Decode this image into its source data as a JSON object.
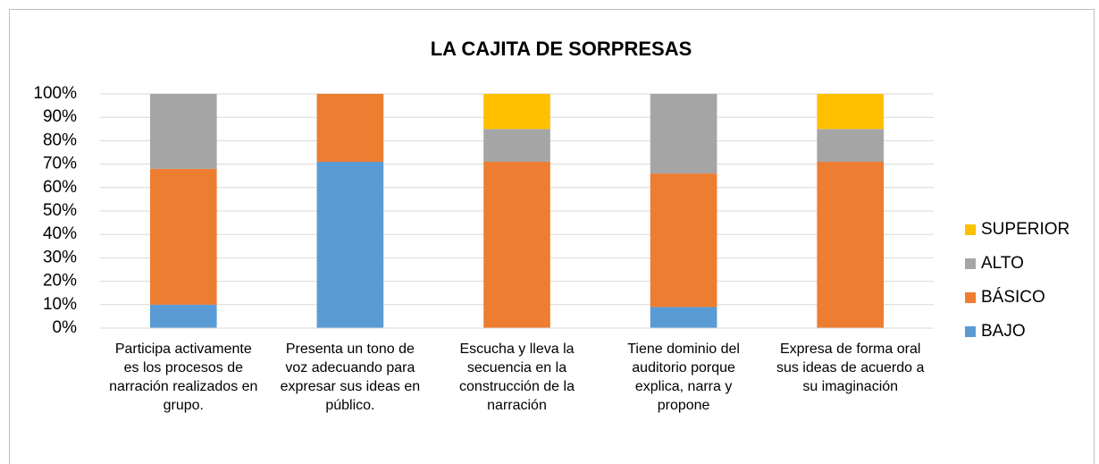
{
  "chart_data": {
    "type": "stacked_bar",
    "title": "LA CAJITA DE SORPRESAS",
    "categories": [
      "Participa activamente es los procesos de narración realizados en grupo.",
      "Presenta un tono de voz adecuando para expresar sus ideas en público.",
      "Escucha y lleva la secuencia en la construcción de la narración",
      "Tiene dominio del auditorio porque explica, narra y propone",
      "Expresa de forma oral sus ideas de acuerdo a su imaginación"
    ],
    "series": [
      {
        "name": "BAJO",
        "color": "#5b9bd5",
        "values": [
          10,
          71,
          0,
          9,
          0
        ]
      },
      {
        "name": "BÁSICO",
        "color": "#ed7d31",
        "values": [
          58,
          29,
          71,
          57,
          71
        ]
      },
      {
        "name": "ALTO",
        "color": "#a5a5a5",
        "values": [
          32,
          0,
          14,
          34,
          14
        ]
      },
      {
        "name": "SUPERIOR",
        "color": "#ffc000",
        "values": [
          0,
          0,
          15,
          0,
          15
        ]
      }
    ],
    "ylim": [
      0,
      100
    ],
    "yticks": [
      {
        "value": 0,
        "label": "0%"
      },
      {
        "value": 10,
        "label": "10%"
      },
      {
        "value": 20,
        "label": "20%"
      },
      {
        "value": 30,
        "label": "30%"
      },
      {
        "value": 40,
        "label": "40%"
      },
      {
        "value": 50,
        "label": "50%"
      },
      {
        "value": 60,
        "label": "60%"
      },
      {
        "value": 70,
        "label": "70%"
      },
      {
        "value": 80,
        "label": "80%"
      },
      {
        "value": 90,
        "label": "90%"
      },
      {
        "value": 100,
        "label": "100%"
      }
    ],
    "grid": true,
    "legend": "right"
  }
}
